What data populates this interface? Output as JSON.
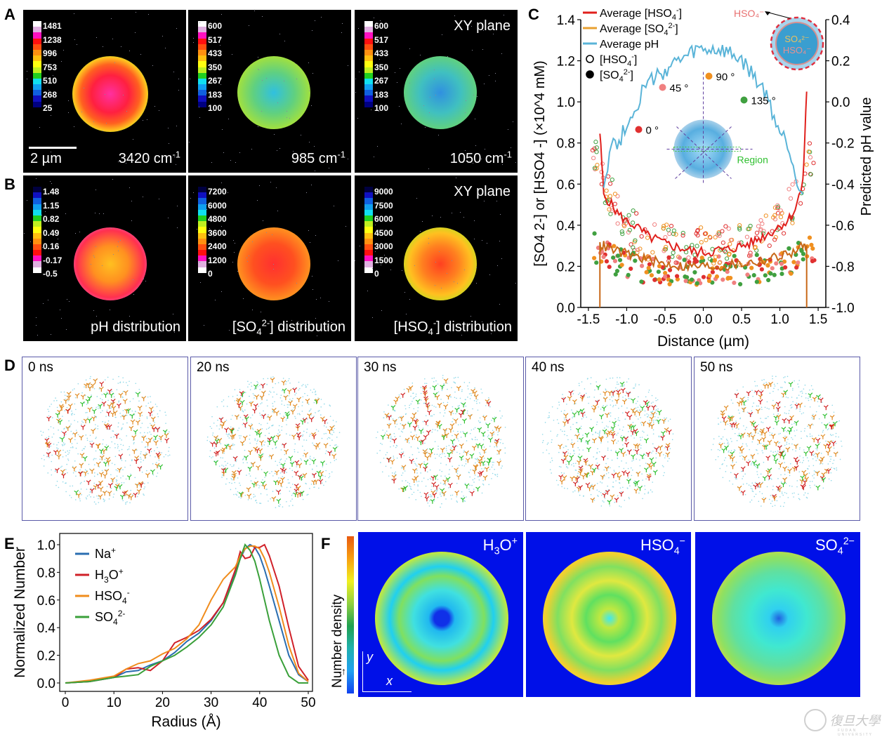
{
  "panels": {
    "A": {
      "label": "A",
      "images": [
        {
          "caption": "3420 cm",
          "caption_sup": "-1",
          "colorbar_ticks": [
            "1481",
            "1238",
            "996",
            "753",
            "510",
            "268",
            "25"
          ],
          "scalebar": "2 µm"
        },
        {
          "caption": "985 cm",
          "caption_sup": "-1",
          "colorbar_ticks": [
            "600",
            "517",
            "433",
            "350",
            "267",
            "183",
            "100"
          ]
        },
        {
          "caption": "1050 cm",
          "caption_sup": "-1",
          "colorbar_ticks": [
            "600",
            "517",
            "433",
            "350",
            "267",
            "183",
            "100"
          ],
          "corner_label": "XY plane"
        }
      ]
    },
    "B": {
      "label": "B",
      "images": [
        {
          "caption": "pH distribution",
          "colorbar_ticks": [
            "1.48",
            "1.15",
            "0.82",
            "0.49",
            "0.16",
            "-0.17",
            "-0.5"
          ]
        },
        {
          "caption_pre": "[SO",
          "caption_sub": "4",
          "caption_sup": "2-",
          "caption_post": "] distribution",
          "colorbar_ticks": [
            "7200",
            "6000",
            "4800",
            "3600",
            "2400",
            "1200",
            "0"
          ]
        },
        {
          "caption_pre": "[HSO",
          "caption_sub": "4",
          "caption_sup": "-",
          "caption_post": "] distribution",
          "colorbar_ticks": [
            "9000",
            "7500",
            "6000",
            "4500",
            "3000",
            "1500",
            "0"
          ],
          "corner_label": "XY plane"
        }
      ]
    },
    "C": {
      "label": "C"
    },
    "D": {
      "label": "D",
      "frames": [
        {
          "time": "0 ns"
        },
        {
          "time": "20 ns"
        },
        {
          "time": "30 ns"
        },
        {
          "time": "40 ns"
        },
        {
          "time": "50 ns"
        }
      ]
    },
    "E": {
      "label": "E"
    },
    "F": {
      "label": "F",
      "colorbar_label": "Number density",
      "axis_y": "y",
      "axis_x": "x",
      "maps": [
        {
          "name": "H",
          "sub": "3",
          "post": "O",
          "sup": "+"
        },
        {
          "name": "HSO",
          "sub": "4",
          "post": "",
          "sup": "−"
        },
        {
          "name": "SO",
          "sub": "4",
          "post": "",
          "sup": "2−"
        }
      ]
    }
  },
  "chart_data": [
    {
      "id": "C",
      "type": "line",
      "title": "",
      "xlabel": "Distance (µm)",
      "ylabel": "[SO4 2-] or [HSO4 -] (×10^4 mM)",
      "ylabel_right": "Predicted pH value",
      "xlim": [
        -1.6,
        1.6
      ],
      "ylim": [
        0.0,
        1.4
      ],
      "ylim_right": [
        -1.0,
        0.4
      ],
      "xticks": [
        "-1.5",
        "-1.0",
        "-0.5",
        "0.0",
        "0.5",
        "1.0",
        "1.5"
      ],
      "xtick_values": [
        -1.5,
        -1.0,
        -0.5,
        0.0,
        0.5,
        1.0,
        1.5
      ],
      "yticks": [
        "0.0",
        "0.2",
        "0.4",
        "0.6",
        "0.8",
        "1.0",
        "1.2",
        "1.4"
      ],
      "yticks_right": [
        "-1.0",
        "-0.8",
        "-0.6",
        "-0.4",
        "-0.2",
        "0.0",
        "0.2",
        "0.4"
      ],
      "legend": [
        {
          "label": "Average [HSO4-]",
          "color": "#e0201c",
          "kind": "line"
        },
        {
          "label": "Average [SO4 2-]",
          "color": "#e8a030",
          "kind": "line"
        },
        {
          "label": "Average pH",
          "color": "#5ab4d8",
          "kind": "line"
        },
        {
          "label": "[HSO4-]",
          "kind": "open-circle"
        },
        {
          "label": "[SO4 2-]",
          "kind": "filled-circle"
        }
      ],
      "legend_position": "top-left",
      "angle_legend": [
        {
          "label": "0 °",
          "color": "#e03030"
        },
        {
          "label": "45 °",
          "color": "#f08080"
        },
        {
          "label": "90 °",
          "color": "#f09020"
        },
        {
          "label": "135 °",
          "color": "#40a040"
        }
      ],
      "inset_region_label": "Region",
      "inset_droplet_labels": [
        "HSO4-",
        "SO4 2-",
        "HSO4-"
      ],
      "x": [
        -1.35,
        -1.3,
        -1.2,
        -1.1,
        -1.0,
        -0.9,
        -0.8,
        -0.7,
        -0.6,
        -0.5,
        -0.4,
        -0.3,
        -0.2,
        -0.1,
        0.0,
        0.1,
        0.2,
        0.3,
        0.4,
        0.5,
        0.6,
        0.7,
        0.8,
        0.9,
        1.0,
        1.1,
        1.2,
        1.3,
        1.35
      ],
      "series": [
        {
          "name": "Average [HSO4-]",
          "axis": "left",
          "values": [
            0.85,
            0.55,
            0.5,
            0.45,
            0.42,
            0.4,
            0.37,
            0.34,
            0.33,
            0.31,
            0.3,
            0.29,
            0.28,
            0.27,
            0.27,
            0.27,
            0.28,
            0.28,
            0.29,
            0.3,
            0.31,
            0.33,
            0.35,
            0.37,
            0.4,
            0.42,
            0.48,
            0.6,
            1.05
          ]
        },
        {
          "name": "Average [SO4 2-]",
          "axis": "left",
          "values": [
            0.3,
            0.3,
            0.28,
            0.27,
            0.26,
            0.25,
            0.24,
            0.23,
            0.22,
            0.21,
            0.21,
            0.2,
            0.2,
            0.2,
            0.2,
            0.2,
            0.2,
            0.2,
            0.21,
            0.21,
            0.22,
            0.22,
            0.23,
            0.24,
            0.25,
            0.26,
            0.27,
            0.3,
            0.3
          ]
        },
        {
          "name": "Average pH",
          "axis": "right",
          "x": [
            -1.3,
            -1.2,
            -1.1,
            -1.0,
            -0.9,
            -0.8,
            -0.7,
            -0.6,
            -0.5,
            -0.4,
            -0.3,
            -0.2,
            -0.1,
            0.0,
            0.1,
            0.2,
            0.3,
            0.4,
            0.5,
            0.6,
            0.7,
            0.8,
            0.9,
            1.0,
            1.1,
            1.2,
            1.3
          ],
          "values": [
            -0.4,
            -0.2,
            -0.2,
            -0.1,
            -0.05,
            0.05,
            0.1,
            0.12,
            0.15,
            0.18,
            0.2,
            0.22,
            0.25,
            0.25,
            0.25,
            0.25,
            0.24,
            0.22,
            0.2,
            0.15,
            0.1,
            0.05,
            -0.05,
            -0.15,
            -0.2,
            -0.35,
            -0.45
          ]
        }
      ]
    },
    {
      "id": "E",
      "type": "line",
      "title": "",
      "xlabel": "Radius (Å)",
      "ylabel": "Normalized Number",
      "xlim": [
        0,
        50
      ],
      "ylim": [
        0.0,
        1.0
      ],
      "xticks": [
        "0",
        "10",
        "20",
        "30",
        "40",
        "50"
      ],
      "yticks": [
        "0.0",
        "0.2",
        "0.4",
        "0.6",
        "0.8",
        "1.0"
      ],
      "legend_position": "top-left",
      "x": [
        0,
        5,
        10,
        12.5,
        15,
        17.5,
        20,
        22.5,
        25,
        27.5,
        30,
        32.5,
        35,
        36,
        37,
        38,
        39,
        40,
        41,
        42,
        44,
        46,
        48,
        50
      ],
      "series": [
        {
          "name": "Na+",
          "color": "#2a6db0",
          "values": [
            0,
            0.01,
            0.04,
            0.08,
            0.09,
            0.13,
            0.16,
            0.22,
            0.3,
            0.36,
            0.45,
            0.58,
            0.8,
            0.9,
            0.97,
            1.0,
            0.98,
            0.92,
            0.82,
            0.7,
            0.45,
            0.2,
            0.06,
            0.01
          ]
        },
        {
          "name": "H3O+",
          "color": "#d02028",
          "values": [
            0,
            0.01,
            0.04,
            0.1,
            0.11,
            0.09,
            0.16,
            0.29,
            0.33,
            0.38,
            0.46,
            0.58,
            0.82,
            0.95,
            0.9,
            0.91,
            0.98,
            0.98,
            1.0,
            0.92,
            0.7,
            0.4,
            0.12,
            0.02
          ]
        },
        {
          "name": "HSO4-",
          "color": "#f08c1c",
          "values": [
            0,
            0.02,
            0.05,
            0.1,
            0.14,
            0.16,
            0.21,
            0.25,
            0.32,
            0.42,
            0.6,
            0.75,
            0.84,
            0.92,
            0.97,
            0.99,
            0.99,
            0.97,
            0.9,
            0.8,
            0.55,
            0.27,
            0.07,
            0.01
          ]
        },
        {
          "name": "SO4 2-",
          "color": "#3aa03a",
          "values": [
            0,
            0.01,
            0.04,
            0.05,
            0.06,
            0.12,
            0.16,
            0.2,
            0.26,
            0.33,
            0.42,
            0.55,
            0.78,
            0.9,
            1.0,
            0.96,
            0.88,
            0.75,
            0.6,
            0.45,
            0.2,
            0.05,
            0.0,
            0.0
          ]
        }
      ],
      "legend_labels": [
        {
          "pre": "Na",
          "sub": "",
          "post": "",
          "sup": "+"
        },
        {
          "pre": "H",
          "sub": "3",
          "post": "O",
          "sup": "+"
        },
        {
          "pre": "HSO",
          "sub": "4",
          "post": "",
          "sup": "-"
        },
        {
          "pre": "SO",
          "sub": "4",
          "post": "",
          "sup": "2-"
        }
      ]
    }
  ],
  "watermark": {
    "text": "復旦大學",
    "subtext": "FUDAN UNIVERSITY"
  }
}
